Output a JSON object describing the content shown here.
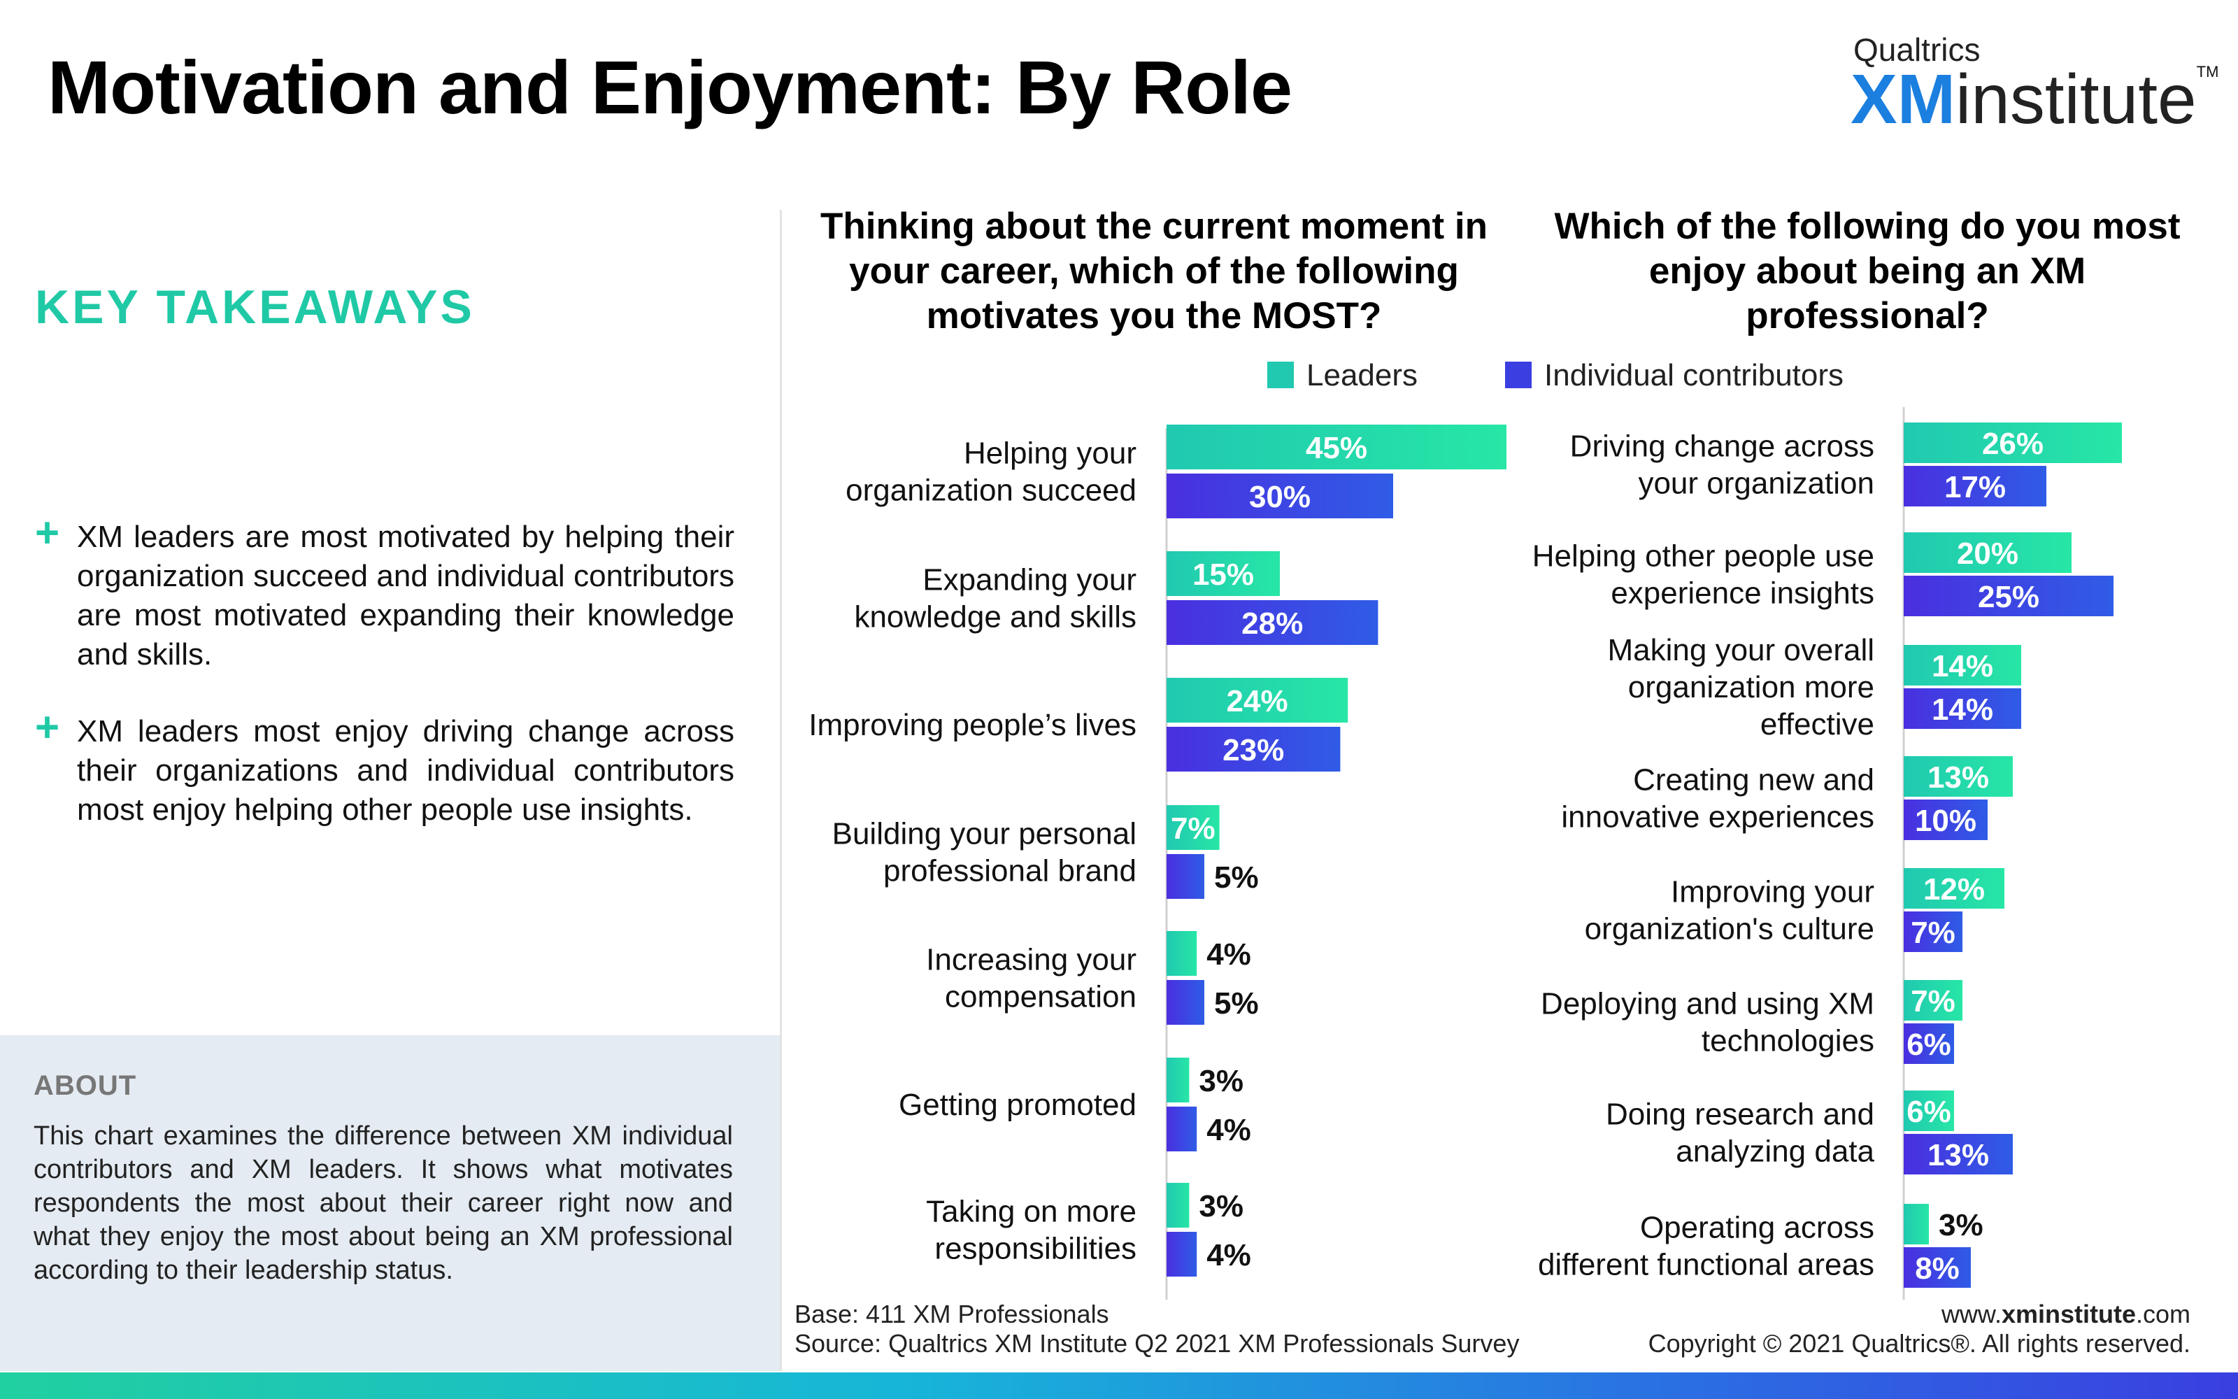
{
  "title": "Motivation and Enjoyment: By Role",
  "logo": {
    "top": "Qualtrics",
    "xm": "XM",
    "institute": "institute",
    "tm": "TM"
  },
  "key_takeaways": {
    "heading": "KEY TAKEAWAYS",
    "items": [
      "XM leaders are most motivated by helping their organization succeed and individual contributors are most motivated expanding their knowledge and skills.",
      "XM leaders most enjoy driving change across their organizations and individual contributors most enjoy helping other people use insights."
    ]
  },
  "about": {
    "heading": "ABOUT",
    "text": "This chart examines the difference between XM individual contributors and XM leaders. It shows what motivates respondents the most about their career right now and what they enjoy the most about being an XM professional according to their leadership status."
  },
  "colors": {
    "leaders_start": "#20c9b0",
    "leaders_end": "#27e6a6",
    "ic_start": "#4a2fe0",
    "ic_end": "#2f5ce6",
    "accent": "#20c9a6"
  },
  "chart_data": [
    {
      "type": "bar",
      "orientation": "horizontal",
      "title": "Thinking about the current moment in your career, which of the following motivates you the MOST?",
      "categories": [
        "Helping your organization succeed",
        "Expanding your knowledge and skills",
        "Improving people’s lives",
        "Building your personal professional brand",
        "Increasing your compensation",
        "Getting promoted",
        "Taking on more responsibilities"
      ],
      "series": [
        {
          "name": "Leaders",
          "values": [
            45,
            15,
            24,
            7,
            4,
            3,
            3
          ]
        },
        {
          "name": "Individual contributors",
          "values": [
            30,
            28,
            23,
            5,
            5,
            4,
            4
          ]
        }
      ],
      "value_suffix": "%"
    },
    {
      "type": "bar",
      "orientation": "horizontal",
      "title": "Which of the following do you most enjoy about being an XM professional?",
      "categories": [
        "Driving change across your organization",
        "Helping other people use experience insights",
        "Making your overall organization more effective",
        "Creating new and innovative experiences",
        "Improving your organization's culture",
        "Deploying and using XM technologies",
        "Doing research and analyzing data",
        "Operating across different functional areas"
      ],
      "series": [
        {
          "name": "Leaders",
          "values": [
            26,
            20,
            14,
            13,
            12,
            7,
            6,
            3
          ]
        },
        {
          "name": "Individual contributors",
          "values": [
            17,
            25,
            14,
            10,
            7,
            6,
            13,
            8
          ]
        }
      ],
      "value_suffix": "%"
    }
  ],
  "legend": {
    "leaders": "Leaders",
    "ic": "Individual contributors"
  },
  "footer": {
    "base": "Base: 411 XM Professionals",
    "source": "Source: Qualtrics XM Institute Q2 2021 XM Professionals Survey",
    "url_prefix": "www.",
    "url_bold": "xminstitute",
    "url_suffix": ".com",
    "copyright": "Copyright © 2021 Qualtrics®. All rights reserved."
  }
}
